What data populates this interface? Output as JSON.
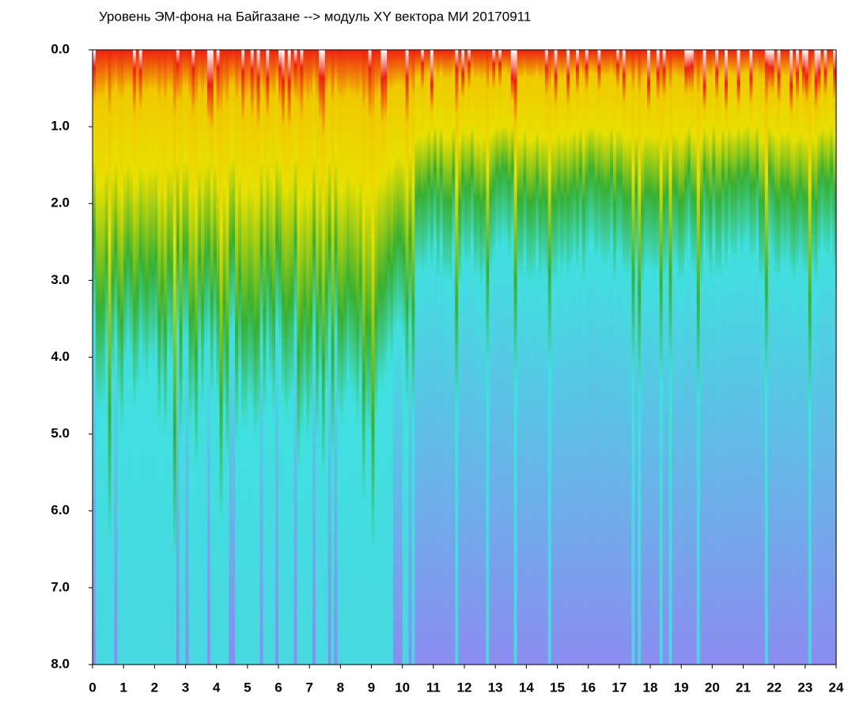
{
  "chart_data": {
    "type": "heatmap",
    "title": "Уровень ЭМ-фона на Байгазане  --> модуль XY вектора МИ  20170911",
    "xlim": [
      0,
      24
    ],
    "xticks": [
      0,
      1,
      2,
      3,
      4,
      5,
      6,
      7,
      8,
      9,
      10,
      11,
      12,
      13,
      14,
      15,
      16,
      17,
      18,
      19,
      20,
      21,
      22,
      23,
      24
    ],
    "ylim": [
      0,
      8
    ],
    "y_inverted": true,
    "yticks": [
      {
        "value": 0,
        "label": "0.0"
      },
      {
        "value": 1,
        "label": "1.0"
      },
      {
        "value": 2,
        "label": "2.0"
      },
      {
        "value": 3,
        "label": "3.0"
      },
      {
        "value": 4,
        "label": "4.0"
      },
      {
        "value": 5,
        "label": "5.0"
      },
      {
        "value": 6,
        "label": "6.0"
      },
      {
        "value": 7,
        "label": "7.0"
      },
      {
        "value": 8,
        "label": "8.0"
      }
    ]
  }
}
